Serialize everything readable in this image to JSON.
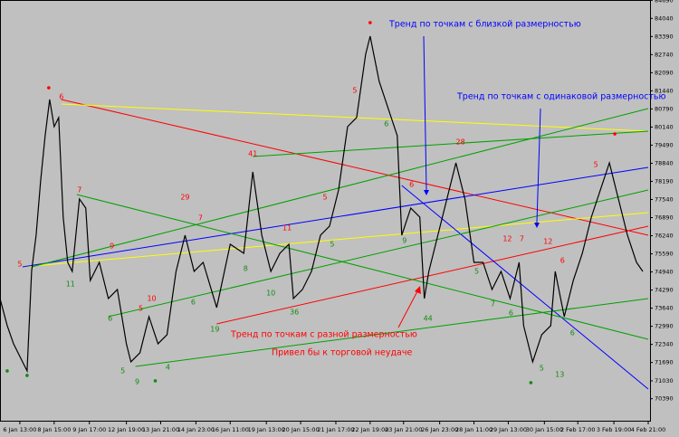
{
  "chart_data": {
    "type": "line",
    "color": "#000000",
    "grid": false,
    "x": [
      0,
      8,
      15,
      25,
      30,
      35,
      40,
      45,
      50,
      55,
      60,
      65,
      70,
      75,
      80,
      88,
      95,
      100,
      110,
      120,
      130,
      140,
      145,
      155,
      165,
      175,
      185,
      195,
      205,
      215,
      225,
      240,
      255,
      270,
      280,
      290,
      300,
      310,
      320,
      325,
      335,
      345,
      355,
      365,
      375,
      385,
      395,
      405,
      410,
      420,
      430,
      440,
      445,
      455,
      465,
      470,
      475,
      485,
      495,
      505,
      515,
      525,
      535,
      545,
      555,
      565,
      575,
      580,
      590,
      600,
      610,
      615,
      625,
      635,
      645,
      655,
      665,
      675,
      685,
      695,
      705,
      712
    ],
    "values": [
      73985,
      73011,
      72361,
      71712,
      71387,
      74959,
      76258,
      78206,
      79830,
      81128,
      80154,
      80479,
      76907,
      75284,
      74959,
      77557,
      77232,
      74634,
      75284,
      73985,
      74310,
      72361,
      71712,
      72037,
      73335,
      72361,
      72686,
      74959,
      76258,
      74959,
      75284,
      73660,
      75933,
      75608,
      78531,
      76258,
      74959,
      75608,
      75933,
      73985,
      74310,
      74959,
      76258,
      76583,
      77881,
      80154,
      80479,
      82752,
      83401,
      81778,
      80804,
      79830,
      76258,
      77232,
      76907,
      73985,
      74959,
      76258,
      77557,
      78856,
      77557,
      75284,
      75284,
      74310,
      74959,
      73985,
      75284,
      73011,
      71712,
      72686,
      73011,
      74959,
      73335,
      74634,
      75608,
      76907,
      77881,
      78856,
      77557,
      76258,
      75284,
      74959
    ],
    "xlim": [
      0,
      720
    ],
    "ylim": [
      69600,
      84700
    ],
    "xticks": [
      {
        "value": 22,
        "label": "6 Jan 13:00"
      },
      {
        "value": 60,
        "label": "8 Jan 15:00"
      },
      {
        "value": 99,
        "label": "9 Jan 17:00"
      },
      {
        "value": 140,
        "label": "12 Jan 19:00"
      },
      {
        "value": 178,
        "label": "13 Jan 21:00"
      },
      {
        "value": 217,
        "label": "14 Jan 23:00"
      },
      {
        "value": 255,
        "label": "16 Jan 11:00"
      },
      {
        "value": 295,
        "label": "19 Jan 13:00"
      },
      {
        "value": 333,
        "label": "20 Jan 15:00"
      },
      {
        "value": 372,
        "label": "21 Jan 17:00"
      },
      {
        "value": 410,
        "label": "22 Jan 19:00"
      },
      {
        "value": 447,
        "label": "23 Jan 21:00"
      },
      {
        "value": 487,
        "label": "26 Jan 23:00"
      },
      {
        "value": 525,
        "label": "28 Jan 11:00"
      },
      {
        "value": 563,
        "label": "29 Jan 13:00"
      },
      {
        "value": 603,
        "label": "30 Jan 15:00"
      },
      {
        "value": 640,
        "label": "2 Feb 17:00"
      },
      {
        "value": 680,
        "label": "3 Feb 19:00"
      },
      {
        "value": 718,
        "label": "4 Feb 21:00"
      }
    ],
    "yticks": [
      70390,
      71030,
      71690,
      72340,
      72990,
      73640,
      74290,
      74940,
      75590,
      76240,
      76890,
      77540,
      78190,
      78840,
      79490,
      80140,
      80790,
      81440,
      82090,
      82740,
      83390,
      84040,
      84690
    ],
    "trend_lines": [
      {
        "color": "#ff0000",
        "x": [
          68,
          718
        ],
        "values": [
          81128,
          76258
        ]
      },
      {
        "color": "#ff0000",
        "x": [
          240,
          718
        ],
        "values": [
          73076,
          76583
        ]
      },
      {
        "color": "#ffff00",
        "x": [
          68,
          718
        ],
        "values": [
          80966,
          79992
        ]
      },
      {
        "color": "#ffff00",
        "x": [
          25,
          718
        ],
        "values": [
          75121,
          77070
        ]
      },
      {
        "color": "#0000ff",
        "x": [
          25,
          718
        ],
        "values": [
          75121,
          78693
        ]
      },
      {
        "color": "#0000ff",
        "x": [
          445,
          718
        ],
        "values": [
          78044,
          70738
        ]
      },
      {
        "color": "#00a000",
        "x": [
          85,
          718
        ],
        "values": [
          77719,
          72524
        ]
      },
      {
        "color": "#00a000",
        "x": [
          150,
          718
        ],
        "values": [
          71549,
          73985
        ]
      },
      {
        "color": "#00a000",
        "x": [
          35,
          718
        ],
        "values": [
          75121,
          80804
        ]
      },
      {
        "color": "#00a000",
        "x": [
          280,
          718
        ],
        "values": [
          79083,
          79992
        ]
      },
      {
        "color": "#00a000",
        "x": [
          120,
          718
        ],
        "values": [
          73335,
          77881
        ]
      }
    ],
    "point_labels": [
      {
        "label": 5,
        "x": 22,
        "y": 75219,
        "color": "#ff0000"
      },
      {
        "label": 6,
        "x": 68,
        "y": 81226,
        "color": "#ff0000"
      },
      {
        "label": 7,
        "x": 88,
        "y": 77881,
        "color": "#ff0000"
      },
      {
        "label": 9,
        "x": 124,
        "y": 75868,
        "color": "#ff0000"
      },
      {
        "label": 29,
        "x": 205,
        "y": 77622,
        "color": "#ff0000"
      },
      {
        "label": 7,
        "x": 222,
        "y": 76875,
        "color": "#ff0000"
      },
      {
        "label": 10,
        "x": 168,
        "y": 73985,
        "color": "#ff0000"
      },
      {
        "label": 5,
        "x": 156,
        "y": 73628,
        "color": "#ff0000"
      },
      {
        "label": 41,
        "x": 280,
        "y": 79180,
        "color": "#ff0000"
      },
      {
        "label": 11,
        "x": 318,
        "y": 76518,
        "color": "#ff0000"
      },
      {
        "label": 5,
        "x": 360,
        "y": 77622,
        "color": "#ff0000"
      },
      {
        "label": 5,
        "x": 393,
        "y": 81453,
        "color": "#ff0000"
      },
      {
        "label": 6,
        "x": 456,
        "y": 78076,
        "color": "#ff0000"
      },
      {
        "label": 28,
        "x": 510,
        "y": 79602,
        "color": "#ff0000"
      },
      {
        "label": 12,
        "x": 562,
        "y": 76128,
        "color": "#ff0000"
      },
      {
        "label": 7,
        "x": 578,
        "y": 76128,
        "color": "#ff0000"
      },
      {
        "label": 12,
        "x": 607,
        "y": 76031,
        "color": "#ff0000"
      },
      {
        "label": 6,
        "x": 623,
        "y": 75349,
        "color": "#ff0000"
      },
      {
        "label": 5,
        "x": 660,
        "y": 78790,
        "color": "#ff0000"
      },
      {
        "label": 11,
        "x": 78,
        "y": 74504,
        "color": "#138a13"
      },
      {
        "label": 6,
        "x": 122,
        "y": 73271,
        "color": "#138a13"
      },
      {
        "label": 5,
        "x": 136,
        "y": 71387,
        "color": "#138a13"
      },
      {
        "label": 9,
        "x": 152,
        "y": 70998,
        "color": "#138a13"
      },
      {
        "label": 4,
        "x": 186,
        "y": 71517,
        "color": "#138a13"
      },
      {
        "label": 6,
        "x": 214,
        "y": 73855,
        "color": "#138a13"
      },
      {
        "label": 8,
        "x": 272,
        "y": 75056,
        "color": "#138a13"
      },
      {
        "label": 19,
        "x": 238,
        "y": 72881,
        "color": "#138a13"
      },
      {
        "label": 10,
        "x": 300,
        "y": 74180,
        "color": "#138a13"
      },
      {
        "label": 36,
        "x": 326,
        "y": 73498,
        "color": "#138a13"
      },
      {
        "label": 5,
        "x": 368,
        "y": 75933,
        "color": "#138a13"
      },
      {
        "label": 6,
        "x": 428,
        "y": 80252,
        "color": "#138a13"
      },
      {
        "label": 9,
        "x": 448,
        "y": 76063,
        "color": "#138a13"
      },
      {
        "label": 44,
        "x": 474,
        "y": 73271,
        "color": "#138a13"
      },
      {
        "label": 5,
        "x": 528,
        "y": 74959,
        "color": "#138a13"
      },
      {
        "label": 7,
        "x": 546,
        "y": 73790,
        "color": "#138a13"
      },
      {
        "label": 6,
        "x": 566,
        "y": 73465,
        "color": "#138a13"
      },
      {
        "label": 5,
        "x": 600,
        "y": 71485,
        "color": "#138a13"
      },
      {
        "label": 13,
        "x": 620,
        "y": 71257,
        "color": "#138a13"
      },
      {
        "label": 6,
        "x": 634,
        "y": 72751,
        "color": "#138a13"
      }
    ],
    "dots": [
      {
        "x": 54,
        "y": 81550,
        "color": "#ff0000"
      },
      {
        "x": 410,
        "y": 83888,
        "color": "#ff0000"
      },
      {
        "x": 681,
        "y": 79894,
        "color": "#ff0000"
      },
      {
        "x": 8,
        "y": 71387,
        "color": "#138a13"
      },
      {
        "x": 30,
        "y": 71225,
        "color": "#138a13"
      },
      {
        "x": 172,
        "y": 71030,
        "color": "#138a13"
      },
      {
        "x": 588,
        "y": 70965,
        "color": "#138a13"
      }
    ],
    "notes": [
      {
        "text": "Тренд по точкам с близкой размерностью"
      },
      {
        "text": "Тренд по точкам с одинаковой размерностью"
      },
      {
        "text": "Тренд по точкам с разной размерностью"
      },
      {
        "text": "Привел бы к торговой неудаче"
      }
    ]
  }
}
